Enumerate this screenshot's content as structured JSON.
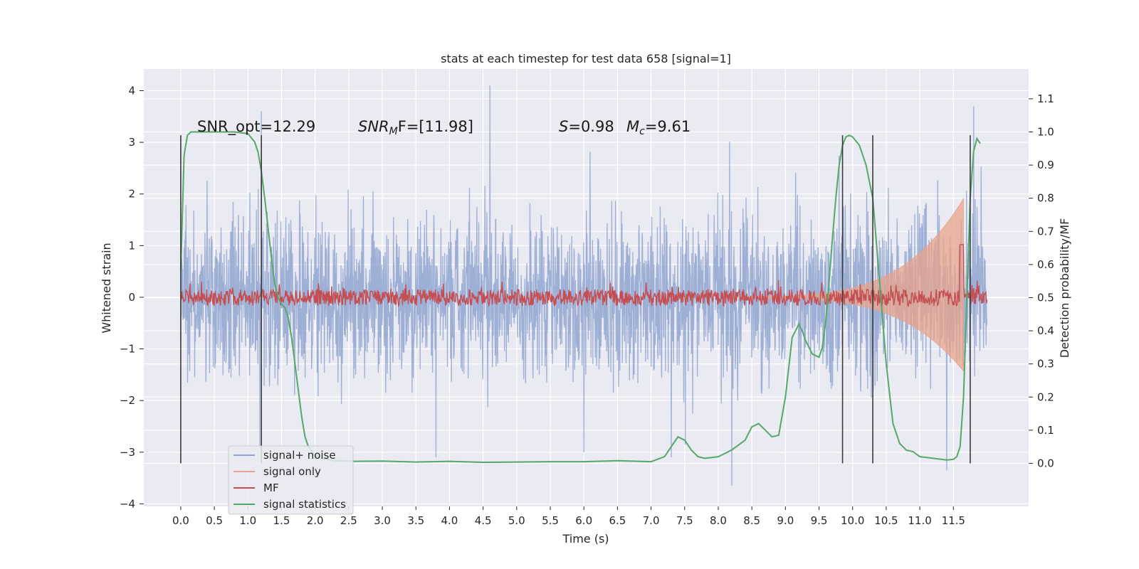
{
  "chart_data": {
    "type": "line",
    "title": "stats at each timestep for test data 658 [signal=1]",
    "xlabel": "Time (s)",
    "ylabel": "Whitened strain",
    "y2label": "Detection probability/MF",
    "xlim": [
      -0.55,
      12.62
    ],
    "ylim": [
      -4.05,
      4.42
    ],
    "y2lim": [
      -0.13,
      1.19
    ],
    "xticks": [
      0.0,
      0.5,
      1.0,
      1.5,
      2.0,
      2.5,
      3.0,
      3.5,
      4.0,
      4.5,
      5.0,
      5.5,
      6.0,
      6.5,
      7.0,
      7.5,
      8.0,
      8.5,
      9.0,
      9.5,
      10.0,
      10.5,
      11.0,
      11.5
    ],
    "xtick_labels": [
      "0.0",
      "0.5",
      "1.0",
      "1.5",
      "2.0",
      "2.5",
      "3.0",
      "3.5",
      "4.0",
      "4.5",
      "5.0",
      "5.5",
      "6.0",
      "6.5",
      "7.0",
      "7.5",
      "8.0",
      "8.5",
      "9.0",
      "9.5",
      "10.0",
      "10.5",
      "11.0",
      "11.5"
    ],
    "yticks": [
      -4,
      -3,
      -2,
      -1,
      0,
      1,
      2,
      3,
      4
    ],
    "ytick_labels": [
      "−4",
      "−3",
      "−2",
      "−1",
      "0",
      "1",
      "2",
      "3",
      "4"
    ],
    "y2ticks": [
      0.0,
      0.1,
      0.2,
      0.3,
      0.4,
      0.5,
      0.6,
      0.7,
      0.8,
      0.9,
      1.0,
      1.1
    ],
    "y2tick_labels": [
      "0.0",
      "0.1",
      "0.2",
      "0.3",
      "0.4",
      "0.5",
      "0.6",
      "0.7",
      "0.8",
      "0.9",
      "1.0",
      "1.1"
    ],
    "grid": true,
    "legend_position": "lower-left",
    "annotations": {
      "snr_opt": "SNR_opt=12.29",
      "snr_mf": "SNR",
      "snr_mf_sub": "M",
      "snr_mf_rest": "F=[11.98]",
      "s_label": "S",
      "s_rest": "=0.98",
      "mc_label": "M",
      "mc_sub": "c",
      "mc_rest": "=9.61"
    },
    "series": [
      {
        "name": "signal+ noise",
        "color": "#8fa5d0",
        "kind": "noise",
        "x_range": [
          0.0,
          12.0
        ],
        "envelope_typical": 1.4,
        "peak_extremes": [
          [
            4.6,
            4.1
          ],
          [
            11.8,
            3.7
          ],
          [
            1.2,
            3.6
          ],
          [
            8.2,
            -3.65
          ],
          [
            3.8,
            -3.1
          ],
          [
            11.4,
            -3.35
          ],
          [
            6.0,
            -3.0
          ],
          [
            7.3,
            -3.1
          ]
        ]
      },
      {
        "name": "signal only",
        "color": "#e8a38a",
        "kind": "chirp",
        "x_range": [
          8.0,
          11.65
        ],
        "max_amplitude": 1.85
      },
      {
        "name": "MF",
        "color": "#c44e52",
        "kind": "band",
        "axis": "right",
        "x_range": [
          0.0,
          12.0
        ],
        "center": 0.5,
        "spike": [
          11.62,
          0.66
        ]
      },
      {
        "name": "signal statistics",
        "color": "#55a868",
        "kind": "line",
        "axis": "right",
        "x": [
          0.0,
          0.05,
          0.1,
          0.15,
          0.2,
          0.3,
          0.5,
          0.8,
          1.0,
          1.1,
          1.15,
          1.2,
          1.25,
          1.3,
          1.35,
          1.4,
          1.45,
          1.5,
          1.55,
          1.6,
          1.65,
          1.7,
          1.75,
          1.8,
          1.85,
          1.9,
          2.0,
          2.1,
          2.3,
          2.6,
          3.0,
          3.5,
          4.0,
          4.5,
          5.0,
          5.5,
          6.0,
          6.5,
          7.0,
          7.2,
          7.3,
          7.4,
          7.5,
          7.6,
          7.7,
          7.8,
          8.0,
          8.2,
          8.4,
          8.5,
          8.6,
          8.7,
          8.8,
          8.9,
          9.0,
          9.1,
          9.2,
          9.25,
          9.3,
          9.4,
          9.5,
          9.55,
          9.6,
          9.65,
          9.7,
          9.75,
          9.8,
          9.85,
          9.9,
          9.95,
          10.0,
          10.1,
          10.2,
          10.3,
          10.4,
          10.5,
          10.6,
          10.7,
          10.8,
          10.9,
          11.0,
          11.2,
          11.4,
          11.5,
          11.55,
          11.6,
          11.65,
          11.7,
          11.75,
          11.8,
          11.85,
          11.9
        ],
        "values": [
          0.58,
          0.93,
          0.99,
          1.0,
          1.0,
          1.0,
          1.0,
          1.0,
          0.995,
          0.97,
          0.94,
          0.88,
          0.8,
          0.71,
          0.62,
          0.54,
          0.5,
          0.48,
          0.47,
          0.44,
          0.38,
          0.3,
          0.22,
          0.14,
          0.08,
          0.05,
          0.025,
          0.014,
          0.008,
          0.006,
          0.007,
          0.004,
          0.006,
          0.003,
          0.004,
          0.005,
          0.005,
          0.008,
          0.005,
          0.02,
          0.05,
          0.08,
          0.07,
          0.04,
          0.02,
          0.015,
          0.02,
          0.04,
          0.07,
          0.11,
          0.12,
          0.1,
          0.08,
          0.085,
          0.2,
          0.38,
          0.42,
          0.4,
          0.37,
          0.33,
          0.32,
          0.35,
          0.43,
          0.55,
          0.68,
          0.8,
          0.9,
          0.96,
          0.985,
          0.99,
          0.985,
          0.96,
          0.9,
          0.8,
          0.55,
          0.3,
          0.12,
          0.06,
          0.04,
          0.035,
          0.02,
          0.015,
          0.01,
          0.012,
          0.02,
          0.05,
          0.2,
          0.5,
          0.8,
          0.94,
          0.98,
          0.965
        ]
      }
    ],
    "vertical_lines": {
      "color": "#3a3a3a",
      "x": [
        0.0,
        1.2,
        9.85,
        10.3,
        11.75
      ],
      "y_range": [
        0.0,
        0.99
      ]
    }
  }
}
